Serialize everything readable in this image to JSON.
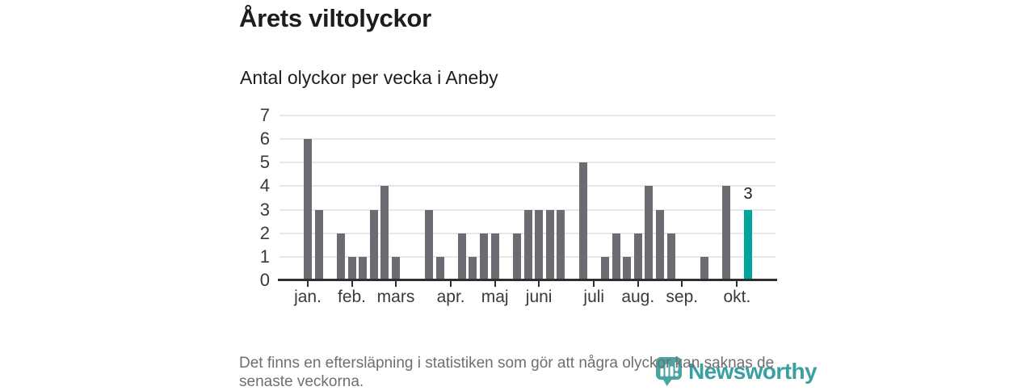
{
  "header": {
    "title": "Årets viltolyckor",
    "subtitle": "Antal olyckor per vecka i Aneby"
  },
  "chart_data": {
    "type": "bar",
    "title": "Årets viltolyckor",
    "subtitle": "Antal olyckor per vecka i Aneby",
    "x_unit": "vecka",
    "weeks": [
      1,
      2,
      3,
      4,
      5,
      6,
      7,
      8,
      9,
      10,
      11,
      12,
      13,
      14,
      15,
      16,
      17,
      18,
      19,
      20,
      21,
      22,
      23,
      24,
      25,
      26,
      27,
      28,
      29,
      30,
      31,
      32,
      33,
      34,
      35,
      36,
      37,
      38,
      39,
      40,
      41
    ],
    "values": [
      6,
      3,
      0,
      2,
      1,
      1,
      3,
      4,
      1,
      0,
      0,
      3,
      1,
      0,
      2,
      1,
      2,
      2,
      0,
      2,
      3,
      3,
      3,
      3,
      0,
      5,
      0,
      1,
      2,
      1,
      2,
      4,
      3,
      2,
      0,
      0,
      1,
      0,
      4,
      0,
      3
    ],
    "ylim": [
      0,
      7
    ],
    "yticks": [
      0,
      1,
      2,
      3,
      4,
      5,
      6,
      7
    ],
    "month_ticks": [
      {
        "label": "jan.",
        "week": 1
      },
      {
        "label": "feb.",
        "week": 5
      },
      {
        "label": "mars",
        "week": 9
      },
      {
        "label": "apr.",
        "week": 14
      },
      {
        "label": "maj",
        "week": 18
      },
      {
        "label": "juni",
        "week": 22
      },
      {
        "label": "juli",
        "week": 27
      },
      {
        "label": "aug.",
        "week": 31
      },
      {
        "label": "sep.",
        "week": 35
      },
      {
        "label": "okt.",
        "week": 40
      }
    ],
    "highlight_week": 41,
    "highlight_value_label": "3",
    "grid": true,
    "legend": null,
    "colors": {
      "bar": "#6b6b72",
      "highlight": "#00a69c",
      "gridline": "#e7e7e7",
      "axis": "#2f2f2f",
      "tick_text": "#3a3a3a"
    }
  },
  "footer": {
    "note": "Det finns en eftersläpning i statistiken som gör att några olyckor kan saknas de senaste veckorna."
  },
  "logo": {
    "text": "Newsworthy",
    "mark_color": "#4ba4a2",
    "text_color": "#3a9fa1"
  }
}
